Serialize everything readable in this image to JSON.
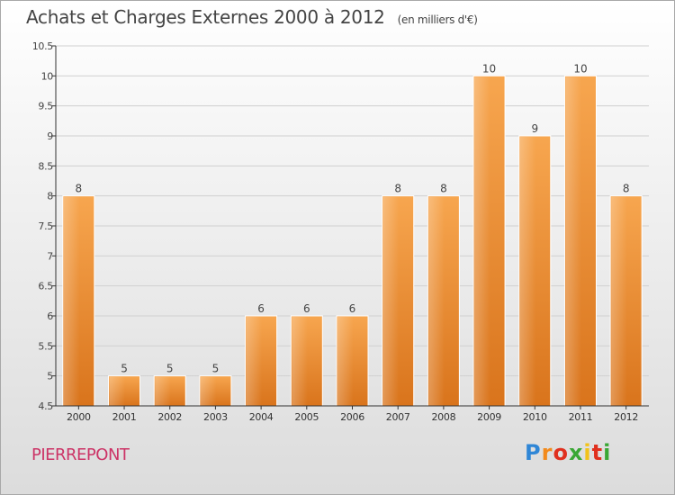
{
  "header": {
    "title": "Achats et Charges Externes 2000 à 2012",
    "subtitle": "(en milliers d'€)"
  },
  "footer": {
    "place": "PIERREPONT",
    "logo": "Proxiti"
  },
  "colors": {
    "bar_top": "#f7a64f",
    "bar_bottom": "#d9741c",
    "axis": "#333333",
    "grid": "#d0d0d0",
    "place": "#cc3366"
  },
  "chart_data": {
    "type": "bar",
    "categories": [
      "2000",
      "2001",
      "2002",
      "2003",
      "2004",
      "2005",
      "2006",
      "2007",
      "2008",
      "2009",
      "2010",
      "2011",
      "2012"
    ],
    "values": [
      8,
      5,
      5,
      5,
      6,
      6,
      6,
      8,
      8,
      10,
      9,
      10,
      8
    ],
    "data_labels": [
      "8",
      "5",
      "5",
      "5",
      "6",
      "6",
      "6",
      "8",
      "8",
      "10",
      "9",
      "10",
      "8"
    ],
    "title": "Achats et Charges Externes 2000 à 2012",
    "xlabel": "",
    "ylabel": "",
    "ylim": [
      4.5,
      10.5
    ],
    "yticks": [
      4.5,
      5,
      5.5,
      6,
      6.5,
      7,
      7.5,
      8,
      8.5,
      9,
      9.5,
      10,
      10.5
    ],
    "ytick_labels": [
      "4.5",
      "5",
      "5.5",
      "6",
      "6.5",
      "7",
      "7.5",
      "8",
      "8.5",
      "9",
      "9.5",
      "10",
      "10.5"
    ],
    "grid": true,
    "legend": "none"
  }
}
